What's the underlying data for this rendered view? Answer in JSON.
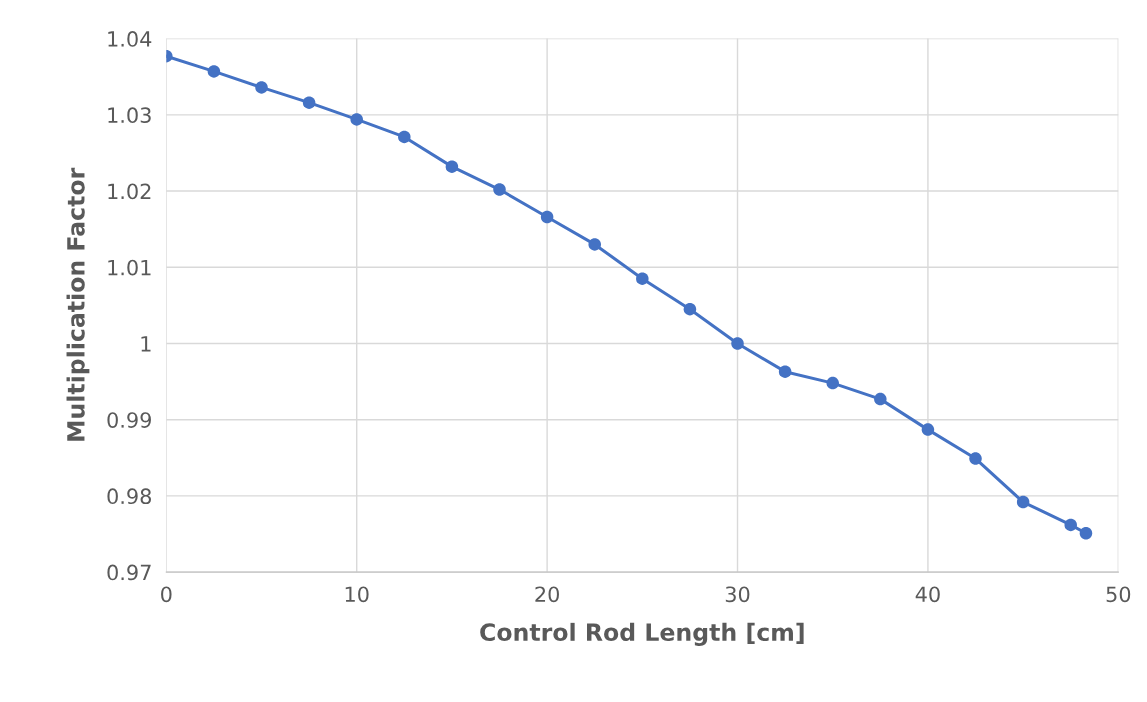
{
  "chart_data": {
    "type": "line",
    "xlabel": "Control Rod Length [cm]",
    "ylabel": "Multiplication Factor",
    "x": [
      0,
      2.5,
      5,
      7.5,
      10,
      12.5,
      15,
      17.5,
      20,
      22.5,
      25,
      27.5,
      30,
      32.5,
      35,
      37.5,
      40,
      42.5,
      45,
      47.5,
      48.3
    ],
    "series": [
      {
        "color": "#4472c4",
        "values": [
          1.0377,
          1.0357,
          1.0336,
          1.0316,
          1.0294,
          1.0271,
          1.0232,
          1.0202,
          1.0166,
          1.013,
          1.0085,
          1.0045,
          1.0,
          0.9963,
          0.9948,
          0.9927,
          0.9887,
          0.9849,
          0.9792,
          0.9762,
          0.9751
        ]
      }
    ],
    "xlim": [
      0,
      50
    ],
    "xticks": [
      0,
      10,
      20,
      30,
      40,
      50
    ],
    "ylim": [
      0.97,
      1.04
    ],
    "yticks": [
      {
        "value": 0.97,
        "label": "0.97"
      },
      {
        "value": 0.98,
        "label": "0.98"
      },
      {
        "value": 0.99,
        "label": "0.99"
      },
      {
        "value": 1,
        "label": "1"
      },
      {
        "value": 1.01,
        "label": "1.01"
      },
      {
        "value": 1.02,
        "label": "1.02"
      },
      {
        "value": 1.03,
        "label": "1.03"
      },
      {
        "value": 1.04,
        "label": "1.04"
      }
    ],
    "grid": true,
    "marker": "circle",
    "line_style": "solid",
    "legend": false
  }
}
